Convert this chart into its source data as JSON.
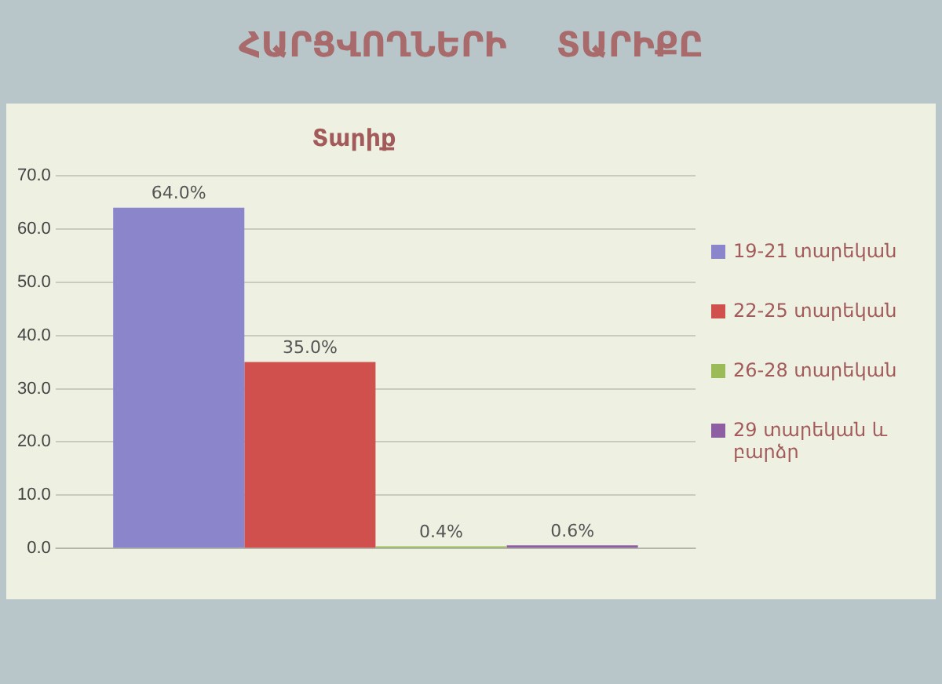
{
  "chart_data": {
    "type": "bar",
    "title": "ՀԱՐՑՎՈՂՆԵՐԻ ՏԱՐԻՔԸ",
    "subtitle": "Տարիք",
    "categories": [
      null
    ],
    "series": [
      {
        "name": "19-21 տարեկան",
        "color": "#8b86cc",
        "values": [
          64.0
        ],
        "value_labels": [
          "64.0%"
        ]
      },
      {
        "name": "22-25 տարեկան",
        "color": "#d0504d",
        "values": [
          35.0
        ],
        "value_labels": [
          "35.0%"
        ]
      },
      {
        "name": "26-28 տարեկան",
        "color": "#9bbb59",
        "values": [
          0.4
        ],
        "value_labels": [
          "0.4%"
        ]
      },
      {
        "name": "29 տարեկան և բարձր",
        "color": "#8e5ea2",
        "values": [
          0.6
        ],
        "value_labels": [
          "0.6%"
        ]
      }
    ],
    "ylim": [
      0,
      70
    ],
    "yticks": [
      {
        "value": 0,
        "label": "0.0"
      },
      {
        "value": 10,
        "label": "10.0"
      },
      {
        "value": 20,
        "label": "20.0"
      },
      {
        "value": 30,
        "label": "30.0"
      },
      {
        "value": 40,
        "label": "40.0"
      },
      {
        "value": 50,
        "label": "50.0"
      },
      {
        "value": 60,
        "label": "60.0"
      },
      {
        "value": 70,
        "label": "70.0"
      }
    ],
    "grid": "y",
    "legend": "right"
  }
}
